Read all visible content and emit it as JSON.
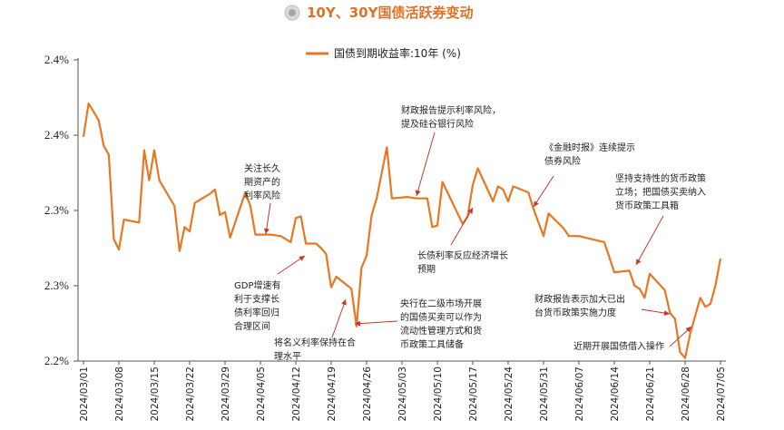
{
  "header": {
    "title": "10Y、30Y国债活跃券变动"
  },
  "chart_data": {
    "type": "line",
    "title": "10Y、30Y国债活跃券变动",
    "xlabel": "",
    "ylabel": "",
    "ylim": [
      2.2,
      2.4
    ],
    "y_ticks": [
      {
        "value": 2.4,
        "label": "2.4%"
      },
      {
        "value": 2.35,
        "label": "2.4%"
      },
      {
        "value": 2.3,
        "label": "2.3%"
      },
      {
        "value": 2.25,
        "label": "2.3%"
      },
      {
        "value": 2.2,
        "label": "2.2%"
      }
    ],
    "legend": {
      "position": "top-center"
    },
    "x_tick_labels": [
      "2024/03/01",
      "2024/03/08",
      "2024/03/15",
      "2024/03/22",
      "2024/03/29",
      "2024/04/05",
      "2024/04/12",
      "2024/04/19",
      "2024/04/26",
      "2024/05/03",
      "2024/05/10",
      "2024/05/17",
      "2024/05/24",
      "2024/05/31",
      "2024/06/07",
      "2024/06/14",
      "2024/06/21",
      "2024/06/28",
      "2024/07/05"
    ],
    "series": [
      {
        "name": "国债到期收益率:10年 (%)",
        "color": "#E87722",
        "points": [
          [
            "2024/03/01",
            2.349
          ],
          [
            "2024/03/02",
            2.371
          ],
          [
            "2024/03/04",
            2.36
          ],
          [
            "2024/03/05",
            2.343
          ],
          [
            "2024/03/06",
            2.337
          ],
          [
            "2024/03/07",
            2.281
          ],
          [
            "2024/03/08",
            2.274
          ],
          [
            "2024/03/09",
            2.294
          ],
          [
            "2024/03/12",
            2.292
          ],
          [
            "2024/03/13",
            2.34
          ],
          [
            "2024/03/14",
            2.32
          ],
          [
            "2024/03/15",
            2.34
          ],
          [
            "2024/03/16",
            2.32
          ],
          [
            "2024/03/19",
            2.303
          ],
          [
            "2024/03/20",
            2.273
          ],
          [
            "2024/03/21",
            2.289
          ],
          [
            "2024/03/22",
            2.286
          ],
          [
            "2024/03/23",
            2.305
          ],
          [
            "2024/03/26",
            2.311
          ],
          [
            "2024/03/27",
            2.314
          ],
          [
            "2024/03/28",
            2.297
          ],
          [
            "2024/03/29",
            2.299
          ],
          [
            "2024/03/30",
            2.282
          ],
          [
            "2024/04/02",
            2.312
          ],
          [
            "2024/04/03",
            2.303
          ],
          [
            "2024/04/04",
            2.284
          ],
          [
            "2024/04/07",
            2.284
          ],
          [
            "2024/04/09",
            2.283
          ],
          [
            "2024/04/11",
            2.279
          ],
          [
            "2024/04/12",
            2.295
          ],
          [
            "2024/04/13",
            2.296
          ],
          [
            "2024/04/14",
            2.278
          ],
          [
            "2024/04/16",
            2.278
          ],
          [
            "2024/04/17",
            2.275
          ],
          [
            "2024/04/18",
            2.271
          ],
          [
            "2024/04/19",
            2.249
          ],
          [
            "2024/04/20",
            2.256
          ],
          [
            "2024/04/23",
            2.248
          ],
          [
            "2024/04/24",
            2.223
          ],
          [
            "2024/04/25",
            2.262
          ],
          [
            "2024/04/26",
            2.27
          ],
          [
            "2024/04/27",
            2.297
          ],
          [
            "2024/04/28",
            2.308
          ],
          [
            "2024/04/30",
            2.342
          ],
          [
            "2024/05/01",
            2.308
          ],
          [
            "2024/05/04",
            2.309
          ],
          [
            "2024/05/06",
            2.308
          ],
          [
            "2024/05/08",
            2.308
          ],
          [
            "2024/05/09",
            2.289
          ],
          [
            "2024/05/10",
            2.29
          ],
          [
            "2024/05/11",
            2.319
          ],
          [
            "2024/05/15",
            2.291
          ],
          [
            "2024/05/16",
            2.296
          ],
          [
            "2024/05/17",
            2.317
          ],
          [
            "2024/05/18",
            2.328
          ],
          [
            "2024/05/21",
            2.306
          ],
          [
            "2024/05/22",
            2.316
          ],
          [
            "2024/05/23",
            2.314
          ],
          [
            "2024/05/24",
            2.306
          ],
          [
            "2024/05/25",
            2.316
          ],
          [
            "2024/05/28",
            2.312
          ],
          [
            "2024/05/29",
            2.301
          ],
          [
            "2024/05/31",
            2.283
          ],
          [
            "2024/06/01",
            2.298
          ],
          [
            "2024/06/04",
            2.288
          ],
          [
            "2024/06/05",
            2.283
          ],
          [
            "2024/06/07",
            2.283
          ],
          [
            "2024/06/12",
            2.279
          ],
          [
            "2024/06/14",
            2.259
          ],
          [
            "2024/06/17",
            2.26
          ],
          [
            "2024/06/18",
            2.25
          ],
          [
            "2024/06/19",
            2.248
          ],
          [
            "2024/06/20",
            2.242
          ],
          [
            "2024/06/21",
            2.258
          ],
          [
            "2024/06/24",
            2.247
          ],
          [
            "2024/06/25",
            2.232
          ],
          [
            "2024/06/26",
            2.228
          ],
          [
            "2024/06/27",
            2.206
          ],
          [
            "2024/06/28",
            2.202
          ],
          [
            "2024/06/29",
            2.218
          ],
          [
            "2024/07/01",
            2.242
          ],
          [
            "2024/07/02",
            2.236
          ],
          [
            "2024/07/03",
            2.238
          ],
          [
            "2024/07/04",
            2.25
          ],
          [
            "2024/07/05",
            2.268
          ]
        ]
      }
    ],
    "annotations": [
      {
        "lines": [
          "关注长久",
          "期资产的",
          "利率风险"
        ],
        "point_date": "2024/04/09"
      },
      {
        "lines": [
          "GDP增速有",
          "利于支撑长",
          "债利率回归",
          "合理区间"
        ],
        "point_date": "2024/04/17"
      },
      {
        "lines": [
          "将名义利率保持在合",
          "理水平"
        ],
        "point_date": "2024/04/23"
      },
      {
        "lines": [
          "财政报告提示利率风险，",
          "提及硅谷银行风险"
        ],
        "point_date": "2024/05/09"
      },
      {
        "lines": [
          "长债利率反应经济增长",
          "预期"
        ],
        "point_date": "2024/05/17"
      },
      {
        "lines": [
          "央行在二级市场开展",
          "的国债买卖可以作为",
          "流动性管理方式和货",
          "币政策工具储备"
        ],
        "point_date": "2024/04/24"
      },
      {
        "lines": [
          "《金融时报》连续提示",
          "债券风险"
        ],
        "point_date": "2024/05/31"
      },
      {
        "lines": [
          "坚持支持性的货币政策",
          "立场；把国债买卖纳入",
          "货币政策工具箱"
        ],
        "point_date": "2024/06/21"
      },
      {
        "lines": [
          "财政报告表示加大已出",
          "台货币政策实施力度"
        ],
        "point_date": "2024/06/26"
      },
      {
        "lines": [
          "近期开展国债借入操作"
        ],
        "point_date": "2024/07/02"
      }
    ]
  }
}
